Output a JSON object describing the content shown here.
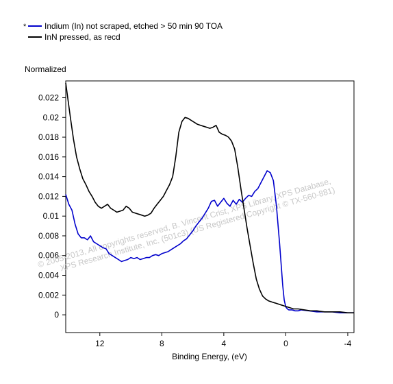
{
  "legend": {
    "marker": "*",
    "entries": [
      {
        "label": "Indium (In) not scraped, etched > 50 min 90 TOA",
        "color": "#0000cc"
      },
      {
        "label": "InN pressed, as recd",
        "color": "#000000"
      }
    ]
  },
  "watermark": {
    "line1": "© 2005-2013, All copyrights reserved,  B. Vincent Crist, XPS Library, XPS Database,",
    "line2": "XPS Research Institute, Inc. (501c3)  (US Registered Copyright © TX-560-881)"
  },
  "chart_data": {
    "type": "line",
    "title": "",
    "ylabel": "Normalized",
    "xlabel": "Binding Energy, (eV)",
    "x_reversed": true,
    "xlim": [
      14.2,
      -4.4
    ],
    "ylim": [
      -0.0018,
      0.0237
    ],
    "xticks": [
      12,
      8,
      4,
      0,
      -4
    ],
    "xtick_labels": [
      "12",
      "8",
      "4",
      "0",
      "-4"
    ],
    "yticks": [
      0,
      0.002,
      0.004,
      0.006,
      0.008,
      0.01,
      0.012,
      0.014,
      0.016,
      0.018,
      0.02,
      0.022
    ],
    "ytick_labels": [
      "0",
      "0.002",
      "0.004",
      "0.006",
      "0.008",
      "0.01",
      "0.012",
      "0.014",
      "0.016",
      "0.018",
      "0.02",
      "0.022"
    ],
    "grid": false,
    "legend_position": "top-left",
    "series": [
      {
        "name": "Indium (In) not scraped, etched > 50 min 90 TOA",
        "color": "#0000cc",
        "x": [
          14.2,
          14.0,
          13.8,
          13.6,
          13.4,
          13.2,
          13.0,
          12.8,
          12.6,
          12.4,
          12.2,
          12.0,
          11.8,
          11.6,
          11.4,
          11.2,
          11.0,
          10.8,
          10.6,
          10.4,
          10.2,
          10.0,
          9.8,
          9.6,
          9.4,
          9.2,
          9.0,
          8.8,
          8.6,
          8.4,
          8.2,
          8.0,
          7.8,
          7.6,
          7.4,
          7.2,
          7.0,
          6.8,
          6.6,
          6.4,
          6.2,
          6.0,
          5.8,
          5.6,
          5.4,
          5.2,
          5.0,
          4.8,
          4.6,
          4.4,
          4.2,
          4.0,
          3.8,
          3.6,
          3.4,
          3.2,
          3.0,
          2.8,
          2.6,
          2.4,
          2.2,
          2.0,
          1.8,
          1.6,
          1.4,
          1.2,
          1.0,
          0.8,
          0.6,
          0.4,
          0.2,
          0.1,
          0.0,
          -0.1,
          -0.2,
          -0.4,
          -0.6,
          -0.8,
          -1.0,
          -1.5,
          -2.0,
          -2.5,
          -3.0,
          -3.5,
          -4.0,
          -4.4
        ],
        "y": [
          0.0122,
          0.0112,
          0.0106,
          0.0092,
          0.0082,
          0.0078,
          0.0078,
          0.0076,
          0.008,
          0.0074,
          0.0072,
          0.007,
          0.0068,
          0.0067,
          0.0062,
          0.006,
          0.0058,
          0.0056,
          0.0054,
          0.0055,
          0.0056,
          0.0058,
          0.0057,
          0.0058,
          0.0056,
          0.0057,
          0.0058,
          0.0058,
          0.006,
          0.0061,
          0.006,
          0.0062,
          0.0063,
          0.0064,
          0.0066,
          0.0068,
          0.007,
          0.0072,
          0.0075,
          0.0077,
          0.0081,
          0.0085,
          0.009,
          0.0094,
          0.0098,
          0.0103,
          0.0108,
          0.0115,
          0.0116,
          0.011,
          0.0114,
          0.0118,
          0.0113,
          0.011,
          0.0116,
          0.0112,
          0.0117,
          0.0114,
          0.0118,
          0.0121,
          0.012,
          0.0125,
          0.0128,
          0.0134,
          0.014,
          0.0146,
          0.0144,
          0.0136,
          0.011,
          0.0072,
          0.003,
          0.0015,
          0.0008,
          0.0006,
          0.0005,
          0.0005,
          0.0004,
          0.0004,
          0.0005,
          0.0004,
          0.0003,
          0.0003,
          0.0003,
          0.0002,
          0.0002,
          0.0002
        ]
      },
      {
        "name": "InN pressed, as recd",
        "color": "#000000",
        "x": [
          14.2,
          13.9,
          13.7,
          13.5,
          13.3,
          13.1,
          12.9,
          12.7,
          12.5,
          12.3,
          12.1,
          11.9,
          11.7,
          11.5,
          11.3,
          11.1,
          10.9,
          10.7,
          10.5,
          10.3,
          10.1,
          9.9,
          9.7,
          9.5,
          9.3,
          9.1,
          8.9,
          8.7,
          8.5,
          8.3,
          8.1,
          7.9,
          7.7,
          7.5,
          7.3,
          7.1,
          6.9,
          6.7,
          6.5,
          6.3,
          6.1,
          5.9,
          5.7,
          5.5,
          5.3,
          5.1,
          4.9,
          4.7,
          4.5,
          4.3,
          4.1,
          3.9,
          3.7,
          3.5,
          3.3,
          3.1,
          2.9,
          2.7,
          2.5,
          2.3,
          2.1,
          1.9,
          1.7,
          1.5,
          1.3,
          1.1,
          0.9,
          0.7,
          0.5,
          0.3,
          0.1,
          -0.1,
          -0.3,
          -0.5,
          -0.8,
          -1.2,
          -1.6,
          -2.0,
          -2.5,
          -3.0,
          -3.5,
          -4.0,
          -4.4
        ],
        "y": [
          0.0235,
          0.02,
          0.0178,
          0.016,
          0.0148,
          0.0138,
          0.0132,
          0.0125,
          0.012,
          0.0114,
          0.011,
          0.0108,
          0.011,
          0.0112,
          0.0108,
          0.0106,
          0.0104,
          0.0105,
          0.0106,
          0.011,
          0.0108,
          0.0104,
          0.0103,
          0.0102,
          0.0101,
          0.01,
          0.0101,
          0.0103,
          0.0108,
          0.0112,
          0.0116,
          0.012,
          0.0126,
          0.0132,
          0.014,
          0.016,
          0.0185,
          0.0196,
          0.02,
          0.0199,
          0.0197,
          0.0195,
          0.0193,
          0.0192,
          0.0191,
          0.019,
          0.0189,
          0.019,
          0.0192,
          0.0185,
          0.0183,
          0.0182,
          0.018,
          0.0176,
          0.0168,
          0.015,
          0.0128,
          0.0108,
          0.0088,
          0.007,
          0.0052,
          0.0036,
          0.0026,
          0.0019,
          0.0016,
          0.0014,
          0.0013,
          0.0012,
          0.0011,
          0.001,
          0.0009,
          0.0008,
          0.0007,
          0.0006,
          0.0006,
          0.0005,
          0.0004,
          0.0004,
          0.0003,
          0.0003,
          0.0003,
          0.0002,
          0.0002
        ]
      }
    ]
  }
}
